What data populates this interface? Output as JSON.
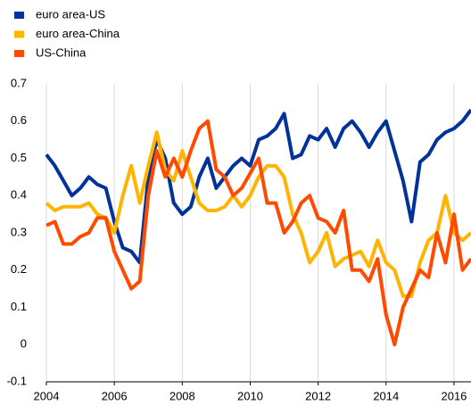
{
  "chart_data": {
    "type": "line",
    "x": [
      2004,
      2004.25,
      2004.5,
      2004.75,
      2005,
      2005.25,
      2005.5,
      2005.75,
      2006,
      2006.25,
      2006.5,
      2006.75,
      2007,
      2007.25,
      2007.5,
      2007.75,
      2008,
      2008.25,
      2008.5,
      2008.75,
      2009,
      2009.25,
      2009.5,
      2009.75,
      2010,
      2010.25,
      2010.5,
      2010.75,
      2011,
      2011.25,
      2011.5,
      2011.75,
      2012,
      2012.25,
      2012.5,
      2012.75,
      2013,
      2013.25,
      2013.5,
      2013.75,
      2014,
      2014.25,
      2014.5,
      2014.75,
      2015,
      2015.25,
      2015.5,
      2015.75,
      2016,
      2016.25,
      2016.5
    ],
    "series": [
      {
        "name": "euro area-US",
        "color": "#003399",
        "values": [
          0.51,
          0.48,
          0.44,
          0.4,
          0.42,
          0.45,
          0.43,
          0.42,
          0.33,
          0.26,
          0.25,
          0.22,
          0.45,
          0.55,
          0.5,
          0.38,
          0.35,
          0.37,
          0.45,
          0.5,
          0.42,
          0.45,
          0.48,
          0.5,
          0.48,
          0.55,
          0.56,
          0.58,
          0.62,
          0.5,
          0.51,
          0.56,
          0.55,
          0.58,
          0.53,
          0.58,
          0.6,
          0.57,
          0.53,
          0.57,
          0.6,
          0.52,
          0.44,
          0.33,
          0.49,
          0.51,
          0.55,
          0.57,
          0.58,
          0.6,
          0.63
        ]
      },
      {
        "name": "euro area-China",
        "color": "#ffb400",
        "values": [
          0.38,
          0.36,
          0.37,
          0.37,
          0.37,
          0.38,
          0.35,
          0.34,
          0.3,
          0.4,
          0.48,
          0.38,
          0.48,
          0.57,
          0.47,
          0.44,
          0.52,
          0.45,
          0.38,
          0.36,
          0.36,
          0.37,
          0.4,
          0.37,
          0.4,
          0.45,
          0.48,
          0.48,
          0.45,
          0.35,
          0.3,
          0.22,
          0.25,
          0.3,
          0.21,
          0.23,
          0.24,
          0.25,
          0.21,
          0.28,
          0.22,
          0.2,
          0.13,
          0.13,
          0.22,
          0.28,
          0.3,
          0.4,
          0.3,
          0.28,
          0.3
        ]
      },
      {
        "name": "US-China",
        "color": "#ff4b00",
        "values": [
          0.32,
          0.33,
          0.27,
          0.27,
          0.29,
          0.3,
          0.34,
          0.34,
          0.25,
          0.2,
          0.15,
          0.17,
          0.4,
          0.52,
          0.45,
          0.5,
          0.45,
          0.52,
          0.58,
          0.6,
          0.47,
          0.45,
          0.4,
          0.42,
          0.46,
          0.5,
          0.38,
          0.38,
          0.3,
          0.33,
          0.38,
          0.4,
          0.34,
          0.33,
          0.3,
          0.36,
          0.2,
          0.2,
          0.17,
          0.23,
          0.08,
          0.0,
          0.1,
          0.15,
          0.2,
          0.18,
          0.3,
          0.22,
          0.35,
          0.2,
          0.23
        ]
      }
    ],
    "xlim": [
      2004,
      2016.5
    ],
    "xticks": [
      2004,
      2006,
      2008,
      2010,
      2012,
      2014,
      2016
    ],
    "ylim": [
      -0.1,
      0.7
    ],
    "yticks": [
      -0.1,
      0,
      0.1,
      0.2,
      0.3,
      0.4,
      0.5,
      0.6,
      0.7
    ],
    "grid": true,
    "legend": "top-left"
  }
}
